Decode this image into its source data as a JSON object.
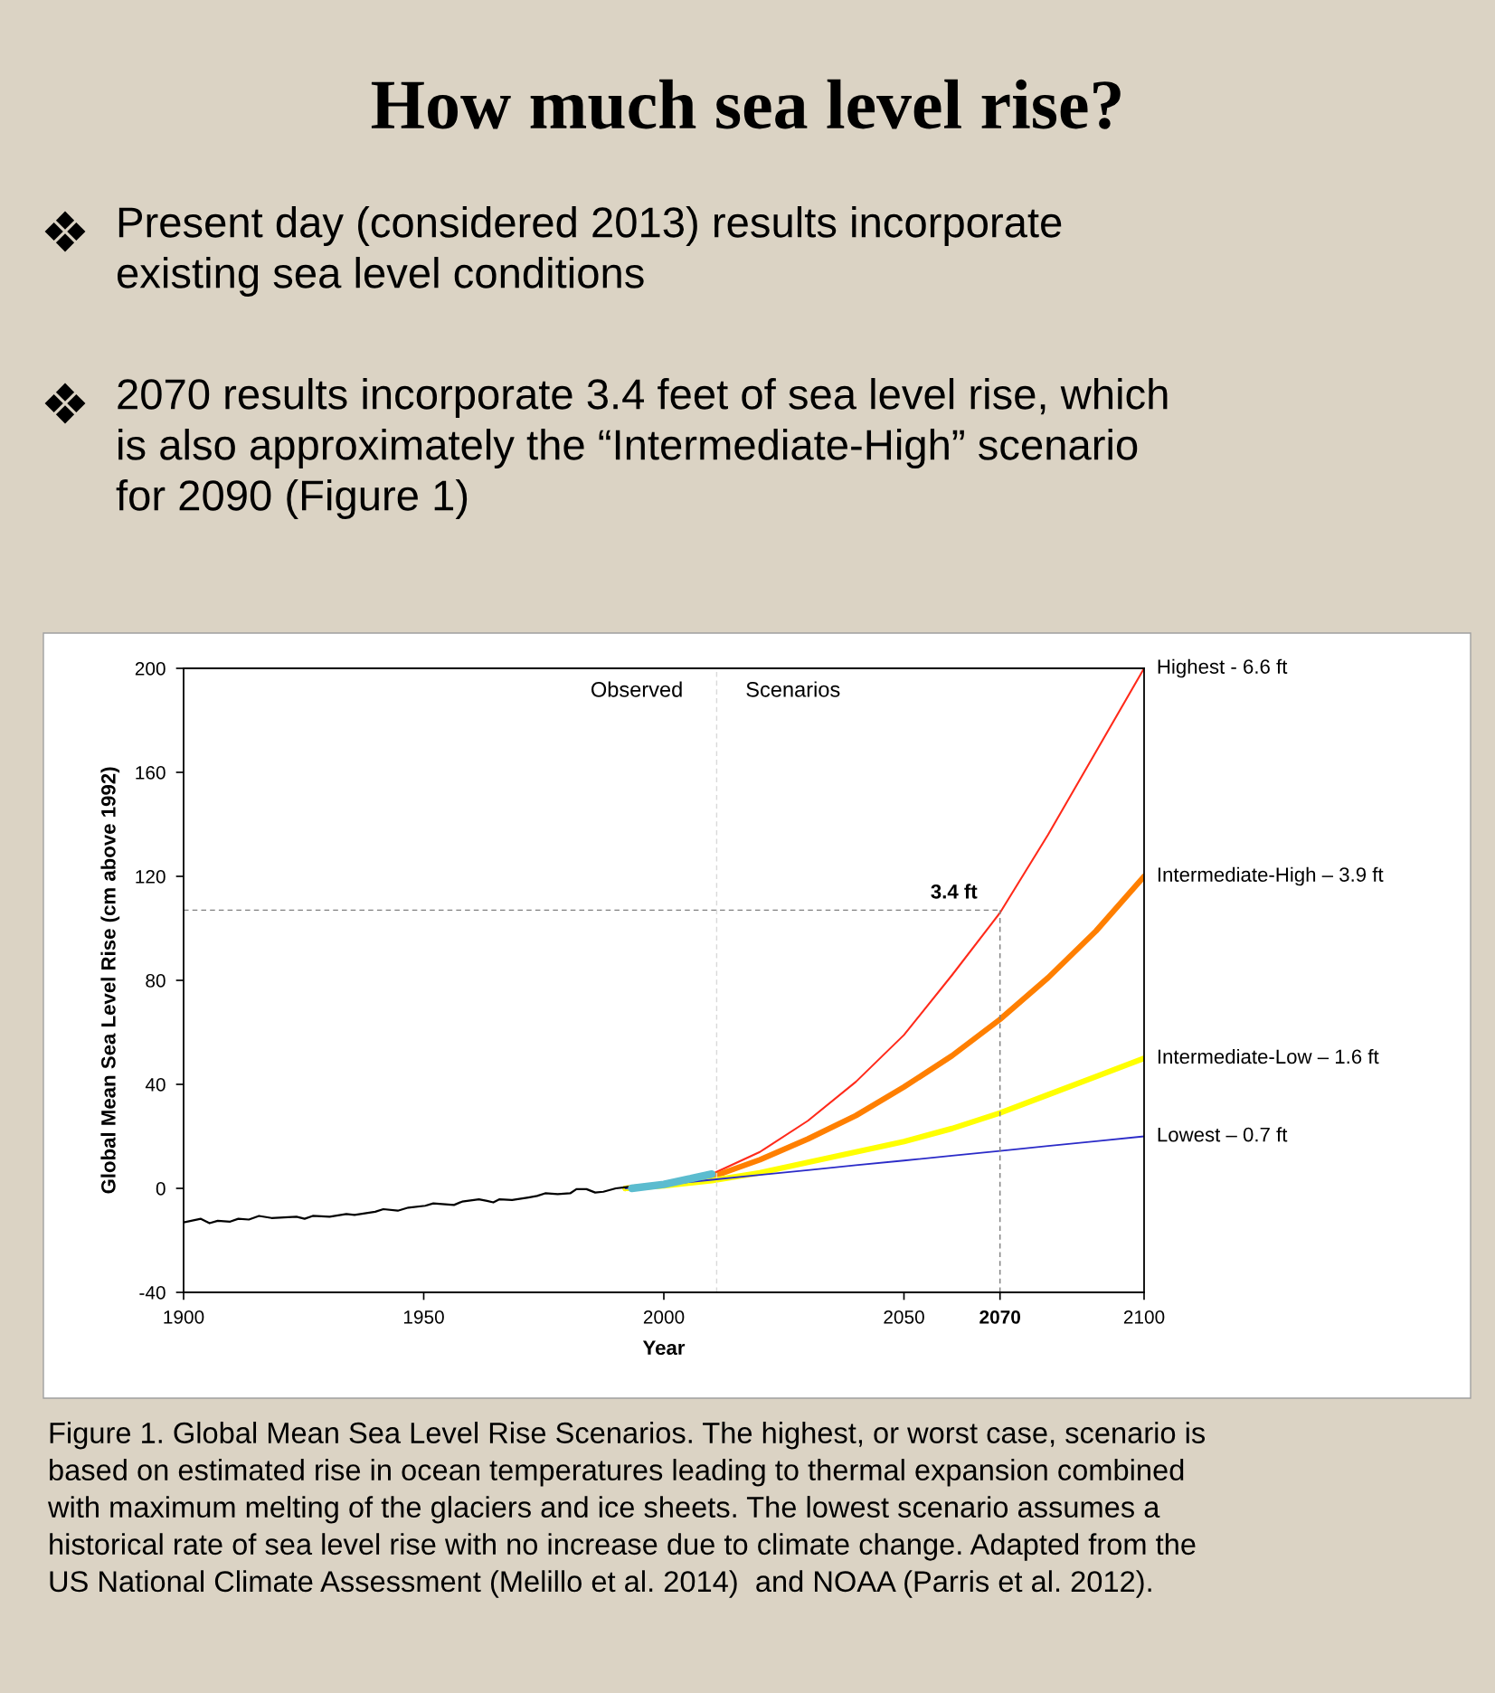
{
  "chart_data": {
    "type": "line",
    "title": "How much sea level rise?",
    "annotations": [
      "Present day (considered 2013) results incorporate\nexisting sea level conditions",
      "2070 results incorporate 3.4 feet of sea level rise, which\nis also approximately the “Intermediate-High” scenario\nfor 2090 (Figure 1)",
      "Observed",
      "Scenarios",
      "Figure 1. Global Mean Sea Level Rise Scenarios. The highest, or worst case, scenario is\nbased on estimated rise in ocean temperatures leading to thermal expansion combined\nwith maximum melting of the glaciers and ice sheets. The lowest scenario assumes a\nhistorical rate of sea level rise with no increase due to climate change. Adapted from the\nUS National Climate Assessment (Melillo et al. 2014)  and NOAA (Parris et al. 2012)."
    ],
    "xlabel": "Year",
    "ylabel": "Global Mean Sea Level Rise (cm above 1992)",
    "xlim": [
      1900,
      2100
    ],
    "ylim": [
      -40,
      200
    ],
    "xticks": [
      1900,
      1950,
      2000,
      2050,
      {
        "value": 2070,
        "label": "2070"
      },
      2100
    ],
    "yticks": [
      -40,
      0,
      40,
      80,
      120,
      160,
      200
    ],
    "grid": false,
    "legend": false,
    "ref_lines": [
      {
        "axis": "x",
        "value": 2011,
        "color": "#d9d9d9",
        "line_style": "dashed"
      },
      {
        "axis": "y",
        "value": 107,
        "label": "3.4 ft",
        "color": "#808080",
        "line_style": "dashed"
      },
      {
        "axis": "x",
        "value": 2070,
        "color": "#808080",
        "line_style": "dashed"
      }
    ],
    "series": [
      {
        "name": "Highest - 6.6 ft",
        "color": "#ff2a1a",
        "x": [
          1992,
          2010,
          2020,
          2030,
          2040,
          2050,
          2060,
          2070,
          2080,
          2090,
          2100
        ],
        "values": [
          0,
          5.5,
          14,
          26,
          41,
          59,
          82,
          106,
          136,
          168,
          200
        ]
      },
      {
        "name": "Intermediate-High – 3.9 ft",
        "color": "#ff7f00",
        "x": [
          1992,
          2000,
          2010,
          2020,
          2030,
          2040,
          2050,
          2060,
          2070,
          2080,
          2090,
          2100
        ],
        "values": [
          0,
          1.5,
          4.4,
          11,
          19,
          28,
          39,
          51,
          65,
          81,
          99,
          120
        ]
      },
      {
        "name": "Intermediate-Low – 1.6 ft",
        "color": "#ffff00",
        "x": [
          1992,
          2000,
          2010,
          2020,
          2030,
          2040,
          2050,
          2060,
          2070,
          2080,
          2090,
          2100
        ],
        "values": [
          0,
          1,
          3,
          6,
          10,
          14,
          18,
          23,
          29,
          36,
          43,
          50
        ]
      },
      {
        "name": "Lowest – 0.7 ft",
        "color": "#2b2bc8",
        "x": [
          1992,
          2010,
          2020,
          2030,
          2040,
          2050,
          2060,
          2070,
          2080,
          2090,
          2100
        ],
        "values": [
          0,
          3.3,
          5.2,
          7,
          8.9,
          10.7,
          12.6,
          14.4,
          16.3,
          18.1,
          20
        ]
      },
      {
        "color": "#000000",
        "x": [
          1900.0,
          1903.6,
          1905.4,
          1907.1,
          1909.7,
          1911.4,
          1913.6,
          1915.7,
          1918.3,
          1923.5,
          1925.2,
          1926.9,
          1930.4,
          1933.9,
          1935.6,
          1939.9,
          1941.6,
          1944.6,
          1946.8,
          1950.3,
          1952.0,
          1956.3,
          1958.0,
          1961.5,
          1963.2,
          1964.5,
          1965.8,
          1968.4,
          1971.8,
          1973.6,
          1975.3,
          1977.9,
          1980.5,
          1981.8,
          1983.9,
          1985.7,
          1987.4,
          1990.0,
          1992.6
        ],
        "values": [
          -13.1,
          -11.7,
          -13.4,
          -12.5,
          -12.8,
          -11.7,
          -12.0,
          -10.6,
          -11.4,
          -10.9,
          -11.7,
          -10.6,
          -10.9,
          -9.9,
          -10.2,
          -9.0,
          -8.0,
          -8.6,
          -7.4,
          -6.7,
          -5.8,
          -6.4,
          -5.1,
          -4.2,
          -4.8,
          -5.4,
          -4.2,
          -4.5,
          -3.5,
          -2.9,
          -1.9,
          -2.2,
          -1.9,
          -0.3,
          -0.3,
          -1.6,
          -1.3,
          0.0,
          0.6
        ]
      },
      {
        "color": "#5bbccf",
        "x": [
          1993.3,
          2000,
          2005,
          2010
        ],
        "values": [
          0,
          1.5,
          3.5,
          5.5
        ]
      }
    ]
  }
}
